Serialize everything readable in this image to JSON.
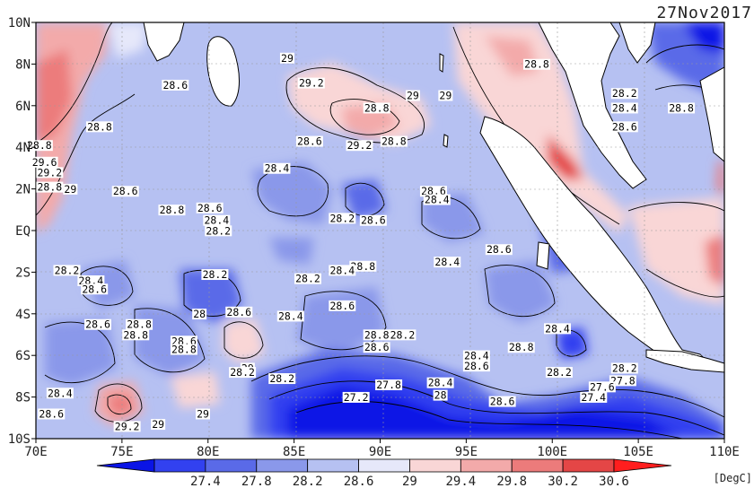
{
  "date_label": "27Nov2017",
  "units_label": "[DegC]",
  "chart_data": {
    "type": "heatmap",
    "title": "",
    "x_ticks": [
      "70E",
      "75E",
      "80E",
      "85E",
      "90E",
      "95E",
      "100E",
      "105E",
      "110E"
    ],
    "y_ticks": [
      "10N",
      "8N",
      "6N",
      "4N",
      "2N",
      "EQ",
      "2S",
      "4S",
      "6S",
      "8S",
      "10S"
    ],
    "colorbar_ticks": [
      "27.4",
      "27.8",
      "28.2",
      "28.6",
      "29",
      "29.4",
      "29.8",
      "30.2",
      "30.6"
    ],
    "colorbar_colors": [
      "#0a14e6",
      "#3241f0",
      "#5a6ae8",
      "#8a98ea",
      "#b6c1f2",
      "#e6e8fa",
      "#f9d6d6",
      "#f3aaaa",
      "#ec7b7b",
      "#e44646",
      "#ff1e1e"
    ],
    "contour_labels": [
      {
        "text": "29",
        "lon": 84.6,
        "lat": 8.2
      },
      {
        "text": "28.6",
        "lon": 78.1,
        "lat": 6.9
      },
      {
        "text": "29.2",
        "lon": 86.0,
        "lat": 7.0
      },
      {
        "text": "28.8",
        "lon": 89.8,
        "lat": 5.8
      },
      {
        "text": "29",
        "lon": 91.9,
        "lat": 6.4
      },
      {
        "text": "29",
        "lon": 93.8,
        "lat": 6.4
      },
      {
        "text": "28.8",
        "lon": 99.1,
        "lat": 7.9
      },
      {
        "text": "28.2",
        "lon": 104.2,
        "lat": 6.5
      },
      {
        "text": "28.4",
        "lon": 104.2,
        "lat": 5.8
      },
      {
        "text": "28.8",
        "lon": 107.5,
        "lat": 5.8
      },
      {
        "text": "28.6",
        "lon": 104.2,
        "lat": 4.9
      },
      {
        "text": "28.8",
        "lon": 73.7,
        "lat": 4.9
      },
      {
        "text": "28.6",
        "lon": 85.9,
        "lat": 4.2
      },
      {
        "text": "29.2",
        "lon": 88.8,
        "lat": 4.0
      },
      {
        "text": "28.8",
        "lon": 90.8,
        "lat": 4.2
      },
      {
        "text": "28.8",
        "lon": 70.2,
        "lat": 4.0
      },
      {
        "text": "29.6",
        "lon": 70.5,
        "lat": 3.2
      },
      {
        "text": "29.2",
        "lon": 70.8,
        "lat": 2.7
      },
      {
        "text": "28.4",
        "lon": 84.0,
        "lat": 2.9
      },
      {
        "text": "28.8",
        "lon": 70.8,
        "lat": 2.0
      },
      {
        "text": "29",
        "lon": 72.0,
        "lat": 1.9
      },
      {
        "text": "28.6",
        "lon": 75.2,
        "lat": 1.8
      },
      {
        "text": "28.6",
        "lon": 93.1,
        "lat": 1.8
      },
      {
        "text": "28.4",
        "lon": 93.3,
        "lat": 1.4
      },
      {
        "text": "28.8",
        "lon": 77.9,
        "lat": 0.9
      },
      {
        "text": "28.6",
        "lon": 80.1,
        "lat": 1.0
      },
      {
        "text": "28.4",
        "lon": 80.5,
        "lat": 0.4
      },
      {
        "text": "28.2",
        "lon": 80.6,
        "lat": -0.1
      },
      {
        "text": "28.2",
        "lon": 87.8,
        "lat": 0.5
      },
      {
        "text": "28.6",
        "lon": 89.6,
        "lat": 0.4
      },
      {
        "text": "28.6",
        "lon": 96.9,
        "lat": -1.0
      },
      {
        "text": "28.8",
        "lon": 89.0,
        "lat": -1.8
      },
      {
        "text": "28.4",
        "lon": 87.8,
        "lat": -2.0
      },
      {
        "text": "28.4",
        "lon": 93.9,
        "lat": -1.6
      },
      {
        "text": "28.2",
        "lon": 71.8,
        "lat": -2.0
      },
      {
        "text": "28.2",
        "lon": 80.4,
        "lat": -2.2
      },
      {
        "text": "28.2",
        "lon": 85.8,
        "lat": -2.4
      },
      {
        "text": "28.4",
        "lon": 73.2,
        "lat": -2.5
      },
      {
        "text": "28.6",
        "lon": 73.4,
        "lat": -2.9
      },
      {
        "text": "28.6",
        "lon": 87.8,
        "lat": -3.7
      },
      {
        "text": "28",
        "lon": 79.5,
        "lat": -4.1
      },
      {
        "text": "28.6",
        "lon": 81.8,
        "lat": -4.0
      },
      {
        "text": "28.4",
        "lon": 84.8,
        "lat": -4.2
      },
      {
        "text": "28.8",
        "lon": 76.0,
        "lat": -4.6
      },
      {
        "text": "28.6",
        "lon": 73.6,
        "lat": -4.6
      },
      {
        "text": "28.8",
        "lon": 75.8,
        "lat": -5.1
      },
      {
        "text": "28.8",
        "lon": 89.8,
        "lat": -5.1
      },
      {
        "text": "28.2",
        "lon": 91.3,
        "lat": -5.1
      },
      {
        "text": "28.6",
        "lon": 89.8,
        "lat": -5.7
      },
      {
        "text": "28.6",
        "lon": 78.6,
        "lat": -5.4
      },
      {
        "text": "28.8",
        "lon": 78.6,
        "lat": -5.8
      },
      {
        "text": "28.4",
        "lon": 100.3,
        "lat": -4.8
      },
      {
        "text": "28.8",
        "lon": 98.2,
        "lat": -5.7
      },
      {
        "text": "28.4",
        "lon": 95.6,
        "lat": -6.1
      },
      {
        "text": "28.6",
        "lon": 95.6,
        "lat": -6.6
      },
      {
        "text": "29",
        "lon": 82.3,
        "lat": -6.7
      },
      {
        "text": "28.2",
        "lon": 82.0,
        "lat": -6.9
      },
      {
        "text": "28.2",
        "lon": 84.3,
        "lat": -7.2
      },
      {
        "text": "28.2",
        "lon": 100.4,
        "lat": -6.9
      },
      {
        "text": "28.2",
        "lon": 104.2,
        "lat": -6.7
      },
      {
        "text": "27.8",
        "lon": 104.1,
        "lat": -7.3
      },
      {
        "text": "27.6",
        "lon": 102.9,
        "lat": -7.6
      },
      {
        "text": "27.4",
        "lon": 102.4,
        "lat": -8.1
      },
      {
        "text": "27.8",
        "lon": 90.5,
        "lat": -7.5
      },
      {
        "text": "28.4",
        "lon": 93.5,
        "lat": -7.4
      },
      {
        "text": "27.2",
        "lon": 88.6,
        "lat": -8.1
      },
      {
        "text": "28",
        "lon": 93.5,
        "lat": -8.0
      },
      {
        "text": "28.6",
        "lon": 97.1,
        "lat": -8.3
      },
      {
        "text": "28.4",
        "lon": 71.4,
        "lat": -7.9
      },
      {
        "text": "28.6",
        "lon": 70.9,
        "lat": -8.9
      },
      {
        "text": "29.2",
        "lon": 75.3,
        "lat": -9.5
      },
      {
        "text": "29",
        "lon": 77.1,
        "lat": -9.4
      },
      {
        "text": "29",
        "lon": 79.7,
        "lat": -8.9
      }
    ]
  }
}
